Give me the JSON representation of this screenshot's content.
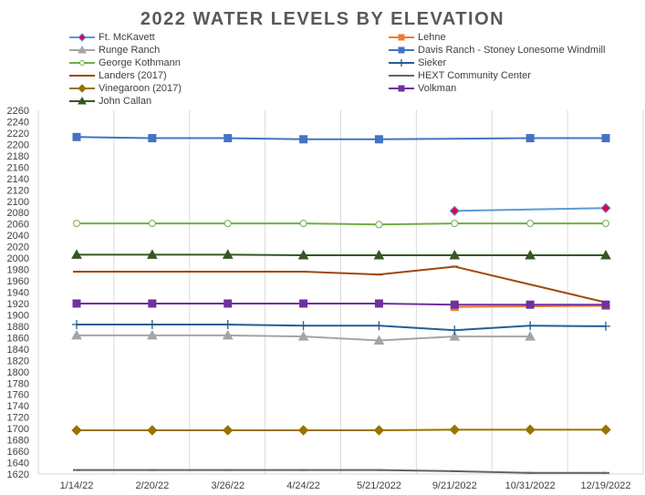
{
  "chart_data": {
    "type": "line",
    "title": "2022 WATER LEVELS BY ELEVATION",
    "xlabel": "",
    "ylabel": "",
    "categories": [
      "1/14/22",
      "2/20/22",
      "3/26/22",
      "4/24/22",
      "5/21/2022",
      "9/21/2022",
      "10/31/2022",
      "12/19/2022"
    ],
    "ylim": [
      1620,
      2260
    ],
    "ytick_step": 10,
    "grid": "vertical",
    "legend_position": "top",
    "series": [
      {
        "name": "Ft. McKavett",
        "color": "#5b9bd5",
        "marker": "diamond",
        "marker_fill": "#e00050",
        "values": [
          null,
          null,
          null,
          null,
          null,
          2083,
          null,
          2088
        ]
      },
      {
        "name": "Lehne",
        "color": "#ed7d31",
        "marker": "square",
        "marker_fill": "#ed7d31",
        "values": [
          null,
          null,
          null,
          null,
          null,
          1914,
          null,
          1916
        ]
      },
      {
        "name": "Runge Ranch",
        "color": "#a5a5a5",
        "marker": "triangle",
        "marker_fill": "#a5a5a5",
        "values": [
          1864,
          1864,
          1864,
          1862,
          1855,
          1862,
          1862,
          null
        ]
      },
      {
        "name": "Davis Ranch - Stoney Lonesome Windmill",
        "color": "#4472c4",
        "marker": "square",
        "marker_fill": "#4472c4",
        "values": [
          2213,
          2211,
          2211,
          2209,
          2209,
          null,
          2211,
          2211
        ]
      },
      {
        "name": "George Kothmann",
        "color": "#70ad47",
        "marker": "circle-open",
        "marker_fill": "#ffffff",
        "values": [
          2061,
          2061,
          2061,
          2061,
          2059,
          2061,
          2061,
          2061
        ]
      },
      {
        "name": "Sieker",
        "color": "#255e91",
        "marker": "plus",
        "marker_fill": "#255e91",
        "values": [
          1883,
          1883,
          1883,
          1881,
          1881,
          1873,
          1881,
          1880
        ]
      },
      {
        "name": "Landers (2017)",
        "color": "#9e480e",
        "marker": "dash",
        "marker_fill": "#9e480e",
        "values": [
          1976,
          1976,
          1976,
          1976,
          1971,
          1985,
          null,
          1922
        ]
      },
      {
        "name": "HEXT Community Center",
        "color": "#636363",
        "marker": "dash",
        "marker_fill": "#636363",
        "values": [
          1627,
          1627,
          1627,
          1627,
          1627,
          1625,
          1622,
          1622
        ]
      },
      {
        "name": "Vinegaroon (2017)",
        "color": "#997300",
        "marker": "diamond",
        "marker_fill": "#997300",
        "values": [
          1697,
          1697,
          1697,
          1697,
          1697,
          1698,
          1698,
          1698
        ]
      },
      {
        "name": "Volkman",
        "color": "#7030a0",
        "marker": "square",
        "marker_fill": "#7030a0",
        "values": [
          1920,
          1920,
          1920,
          1920,
          1920,
          1918,
          1918,
          1918
        ]
      },
      {
        "name": "John Callan",
        "color": "#375623",
        "marker": "triangle",
        "marker_fill": "#375623",
        "values": [
          2006,
          2006,
          2006,
          2005,
          2005,
          2005,
          2005,
          2005
        ]
      }
    ]
  }
}
